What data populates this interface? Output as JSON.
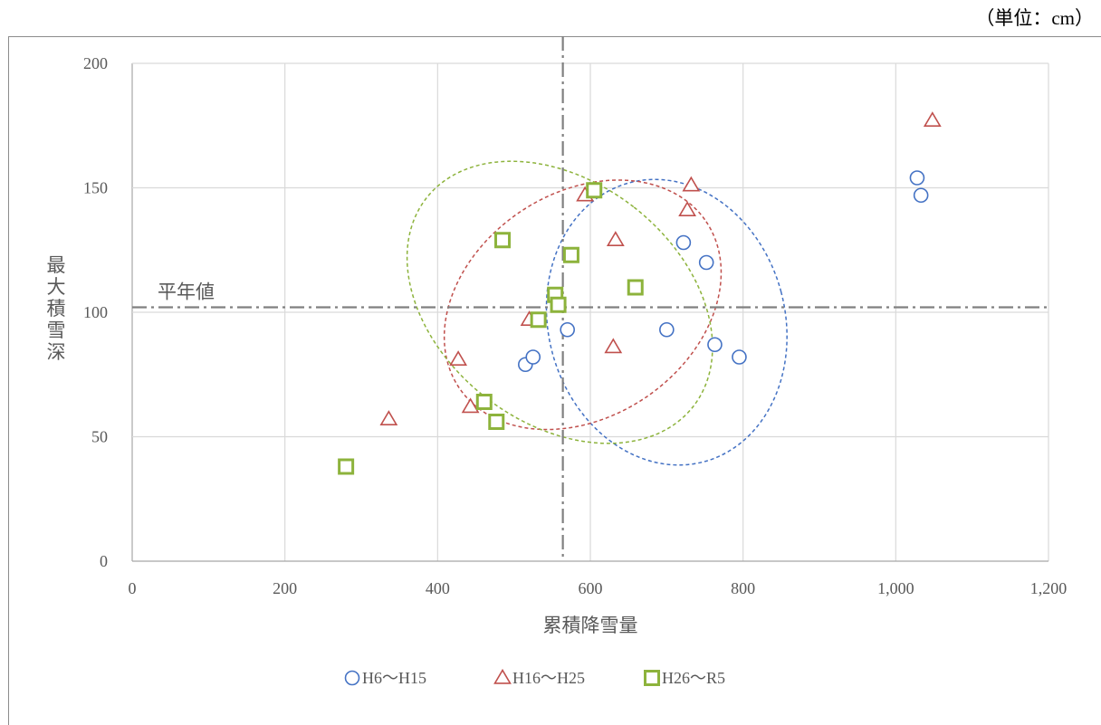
{
  "unit_note": "（単位：cm）",
  "colors": {
    "series1": "#4472C4",
    "series2": "#C0504D",
    "series3": "#8DB33C",
    "grid": "#d9d9d9",
    "ref": "#808080"
  },
  "chart_data": {
    "type": "scatter",
    "xlabel": "累積降雪量",
    "ylabel": "最大積雪深",
    "xlim": [
      0,
      1200
    ],
    "ylim": [
      0,
      200
    ],
    "x_ticks": [
      0,
      200,
      400,
      600,
      800,
      1000,
      1200
    ],
    "x_tick_labels": [
      "0",
      "200",
      "400",
      "600",
      "800",
      "1,000",
      "1,200"
    ],
    "y_ticks": [
      0,
      50,
      100,
      150,
      200
    ],
    "y_tick_labels": [
      "0",
      "50",
      "100",
      "150",
      "200"
    ],
    "grid": true,
    "legend_position": "bottom",
    "reference_lines": {
      "x": 564,
      "y": 102,
      "label": "平年値"
    },
    "series": [
      {
        "name": "H6〜H15",
        "marker": "circle",
        "points": [
          [
            515,
            79
          ],
          [
            525,
            82
          ],
          [
            570,
            93
          ],
          [
            700,
            93
          ],
          [
            722,
            128
          ],
          [
            752,
            120
          ],
          [
            763,
            87
          ],
          [
            795,
            82
          ],
          [
            1028,
            154
          ],
          [
            1033,
            147
          ]
        ]
      },
      {
        "name": "H16〜H25",
        "marker": "triangle",
        "points": [
          [
            336,
            57
          ],
          [
            427,
            81
          ],
          [
            443,
            62
          ],
          [
            520,
            97
          ],
          [
            593,
            147
          ],
          [
            630,
            86
          ],
          [
            633,
            129
          ],
          [
            727,
            141
          ],
          [
            732,
            151
          ],
          [
            1048,
            177
          ]
        ]
      },
      {
        "name": "H26〜R5",
        "marker": "square",
        "points": [
          [
            280,
            38
          ],
          [
            461,
            64
          ],
          [
            477,
            56
          ],
          [
            485,
            129
          ],
          [
            532,
            97
          ],
          [
            554,
            107
          ],
          [
            558,
            103
          ],
          [
            575,
            123
          ],
          [
            605,
            149
          ],
          [
            659,
            110
          ]
        ]
      }
    ],
    "ellipses": [
      {
        "series": "H6〜H15",
        "cx": 700,
        "cy": 96,
        "rx": 155,
        "ry": 58,
        "angle": 15
      },
      {
        "series": "H16〜H25",
        "cx": 590,
        "cy": 103,
        "rx": 195,
        "ry": 45,
        "angle": 34
      },
      {
        "series": "H26〜R5",
        "cx": 560,
        "cy": 104,
        "rx": 158,
        "ry": 68,
        "angle": 52
      }
    ]
  }
}
